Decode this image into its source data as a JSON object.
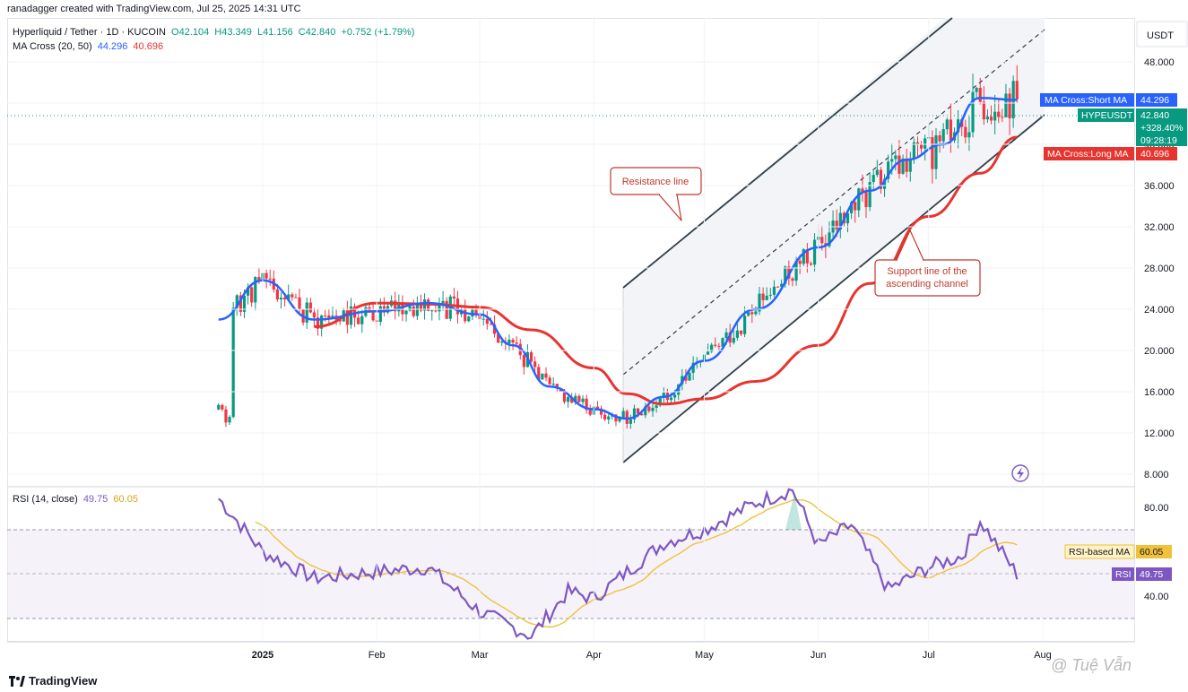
{
  "header": {
    "created_by": "ranadagger created with TradingView.com, Jul 25, 2025 14:31 UTC"
  },
  "legend": {
    "symbol": "Hyperliquid / Tether · 1D · KUCOIN",
    "open": "O42.104",
    "high": "H43.349",
    "low": "L41.156",
    "close": "C42.840",
    "change": "+0.752 (+1.79%)",
    "ma_title": "MA Cross (20, 50)",
    "ma_short": "44.296",
    "ma_long": "40.696",
    "rsi_title": "RSI (14, close)",
    "rsi_value": "49.75",
    "rsi_ma": "60.05"
  },
  "price_axis": {
    "currency": "USDT",
    "ticks": [
      "48.000",
      "44.000",
      "40.000",
      "36.000",
      "32.000",
      "28.000",
      "24.000",
      "20.000",
      "16.000",
      "12.000",
      "8.000"
    ]
  },
  "rsi_axis": {
    "ticks": [
      "80.00",
      "40.00"
    ]
  },
  "time_axis": {
    "ticks": [
      "2025",
      "Feb",
      "Mar",
      "Apr",
      "May",
      "Jun",
      "Jul",
      "Aug"
    ]
  },
  "tags": {
    "short_ma_label": "MA Cross:Short MA",
    "short_ma_value": "44.296",
    "symbol_label": "HYPEUSDT",
    "last_price": "42.840",
    "pct": "+328.40%",
    "countdown": "09:28:19",
    "long_ma_label": "MA Cross:Long MA",
    "long_ma_value": "40.696",
    "rsi_ma_label": "RSI-based MA",
    "rsi_ma_value": "60.05",
    "rsi_label": "RSI",
    "rsi_value": "49.75"
  },
  "annotations": {
    "resistance": "Resistance line",
    "support_1": "Support line of the",
    "support_2": "ascending channel"
  },
  "brand": {
    "name": "TradingView",
    "watermark": "@ Tuệ Vẫn"
  },
  "colors": {
    "up": "#089981",
    "down": "#f23645",
    "short_ma": "#2962ff",
    "long_ma": "#e8342f",
    "rsi": "#7e57c2",
    "rsi_ma": "#f0c23b"
  },
  "chart_data": {
    "type": "line",
    "title": "Hyperliquid / Tether · 1D · KUCOIN",
    "price_axis_range": [
      8,
      50
    ],
    "series": [
      {
        "name": "MA Cross:Short MA",
        "x": [
          "2024-12-20",
          "2025-01-01",
          "2025-01-15",
          "2025-02-01",
          "2025-02-15",
          "2025-03-01",
          "2025-03-10",
          "2025-03-20",
          "2025-04-01",
          "2025-04-10",
          "2025-04-20",
          "2025-05-01",
          "2025-05-15",
          "2025-06-01",
          "2025-06-15",
          "2025-06-25",
          "2025-07-05",
          "2025-07-15",
          "2025-07-25"
        ],
        "values": [
          23.0,
          26.8,
          23.0,
          23.8,
          24.6,
          23.5,
          20.5,
          16.5,
          14.3,
          13.4,
          15.5,
          19.0,
          24.0,
          30.0,
          35.5,
          38.5,
          40.0,
          44.5,
          44.3
        ]
      },
      {
        "name": "MA Cross:Long MA",
        "x": [
          "2025-01-15",
          "2025-02-01",
          "2025-02-15",
          "2025-03-01",
          "2025-03-15",
          "2025-04-01",
          "2025-04-10",
          "2025-04-20",
          "2025-05-01",
          "2025-05-15",
          "2025-06-01",
          "2025-06-15",
          "2025-07-01",
          "2025-07-15",
          "2025-07-25"
        ],
        "values": [
          22.3,
          24.6,
          24.5,
          24.2,
          22.0,
          18.3,
          15.8,
          14.8,
          15.3,
          17.0,
          20.5,
          26.5,
          33.0,
          37.2,
          40.7
        ]
      },
      {
        "name": "RSI",
        "x": [
          "2024-12-20",
          "2025-01-01",
          "2025-01-15",
          "2025-02-01",
          "2025-02-15",
          "2025-03-01",
          "2025-03-15",
          "2025-03-25",
          "2025-04-01",
          "2025-04-10",
          "2025-04-20",
          "2025-05-01",
          "2025-05-15",
          "2025-05-25",
          "2025-06-01",
          "2025-06-10",
          "2025-06-20",
          "2025-07-01",
          "2025-07-10",
          "2025-07-15",
          "2025-07-25"
        ],
        "values": [
          84,
          60,
          48,
          51,
          53,
          33,
          22,
          42,
          39,
          51,
          64,
          70,
          82,
          88,
          63,
          72,
          43,
          53,
          58,
          74,
          49.75
        ]
      }
    ],
    "rsi_axis_range": [
      20,
      90
    ],
    "rsi_bands": [
      70,
      30
    ]
  }
}
